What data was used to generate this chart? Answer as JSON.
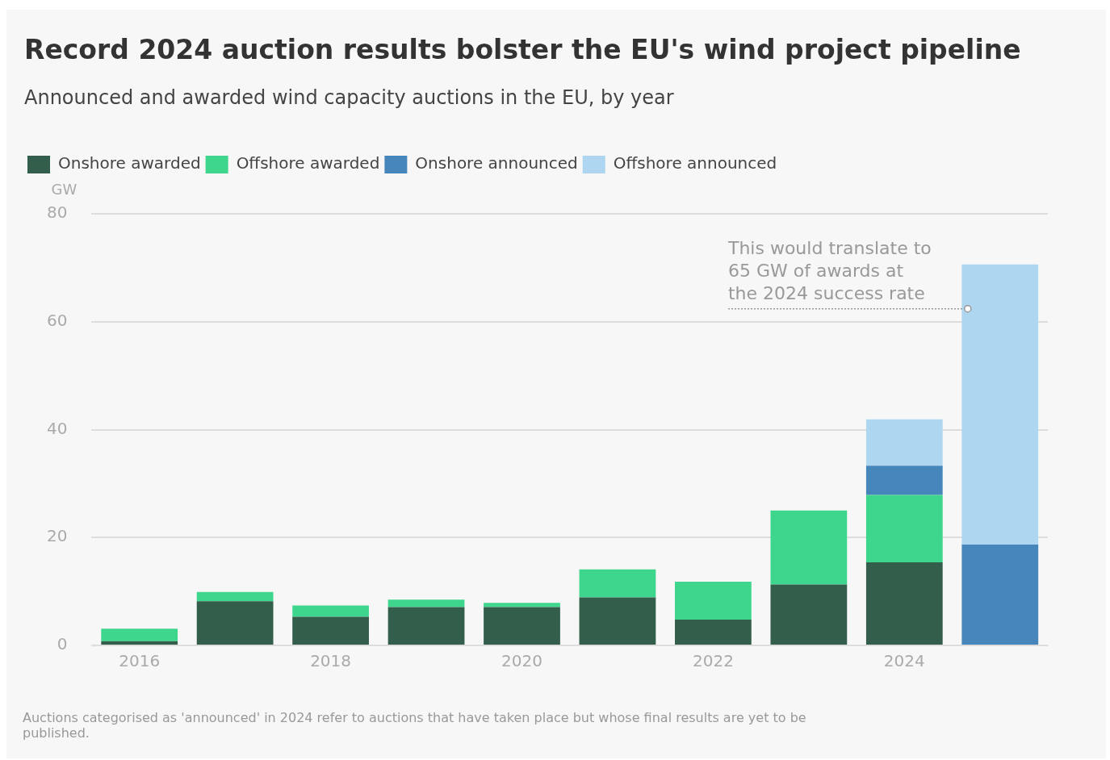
{
  "chart_data": {
    "type": "bar",
    "title": "Record 2024 auction results bolster the EU's wind project pipeline",
    "subtitle": "Announced and awarded wind capacity auctions in the EU, by year",
    "ylabel": "GW",
    "categories": [
      "2016",
      null,
      "2018",
      null,
      "2020",
      null,
      "2022",
      null,
      "2024",
      null
    ],
    "stacked": true,
    "series": [
      {
        "name": "Onshore awarded",
        "color": "#335e4b",
        "values": [
          0.8,
          8.2,
          5.3,
          7.1,
          7.1,
          8.9,
          4.8,
          11.3,
          15.4,
          null
        ]
      },
      {
        "name": "Offshore awarded",
        "color": "#3dd68c",
        "values": [
          2.3,
          1.7,
          2.1,
          1.4,
          0.8,
          5.2,
          7.0,
          13.7,
          12.5,
          null
        ]
      },
      {
        "name": "Onshore announced",
        "color": "#4686bb",
        "values": [
          null,
          null,
          null,
          null,
          null,
          null,
          null,
          null,
          5.4,
          18.7
        ]
      },
      {
        "name": "Offshore announced",
        "color": "#aed6f1",
        "values": [
          null,
          null,
          null,
          null,
          null,
          null,
          null,
          null,
          8.6,
          51.9
        ]
      }
    ],
    "ylim": [
      0,
      80
    ],
    "yticks": [
      0,
      20,
      40,
      60,
      80
    ],
    "grid": "y",
    "legend": "top left",
    "annotations": [
      "This would translate to\n65 GW of awards at\nthe 2024 success rate",
      "Auctions categorised as 'announced' in 2024 refer to auctions that have taken place but whose final results are yet to be published."
    ]
  }
}
